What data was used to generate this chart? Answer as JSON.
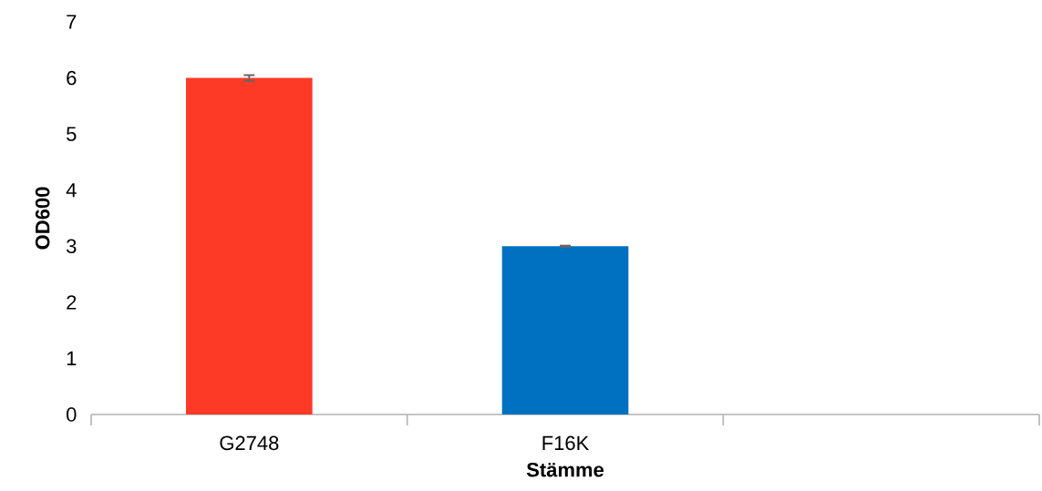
{
  "chart_data": {
    "type": "bar",
    "xlabel": "Stämme",
    "ylabel": "OD600",
    "categories": [
      "G2748",
      "F16K",
      null
    ],
    "values": [
      6,
      3,
      null
    ],
    "colors": [
      "#fc3a26",
      "#0070c0",
      "#0070c0"
    ],
    "errors": [
      0.05,
      0.01,
      null
    ],
    "ylim": [
      0,
      7
    ],
    "yticks": [
      0,
      1,
      2,
      3,
      4,
      5,
      6,
      7
    ],
    "grid": false
  }
}
